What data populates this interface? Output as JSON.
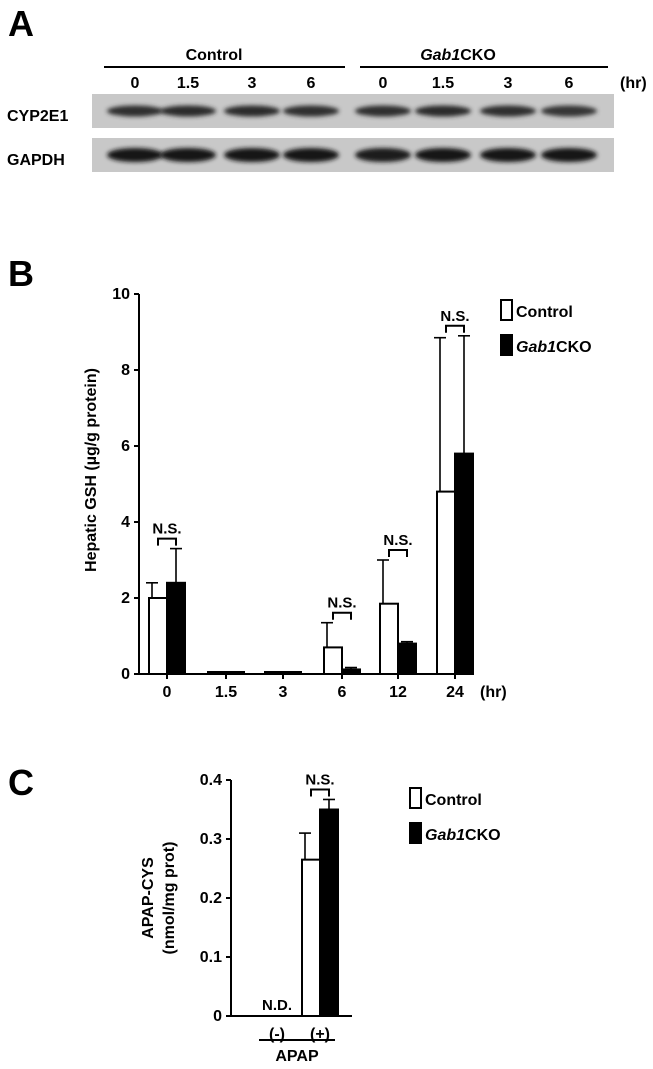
{
  "panel_a": {
    "letter": "A",
    "group_control": "Control",
    "group_cko_italic": "Gab1",
    "group_cko_rest": "CKO",
    "lanes": [
      "0",
      "1.5",
      "3",
      "6",
      "0",
      "1.5",
      "3",
      "6"
    ],
    "unit": "(hr)",
    "rows": [
      {
        "label": "CYP2E1",
        "intensities": [
          0.78,
          0.82,
          0.8,
          0.78,
          0.78,
          0.8,
          0.78,
          0.72
        ]
      },
      {
        "label": "GAPDH",
        "intensities": [
          0.98,
          0.98,
          0.98,
          0.98,
          0.95,
          0.98,
          0.98,
          0.96
        ]
      }
    ]
  },
  "panel_b_letter": "B",
  "panel_c_letter": "C",
  "chart_data": [
    {
      "type": "bar",
      "title": "",
      "ylabel": "Hepatic GSH (µg/g protein)",
      "categories": [
        "0",
        "1.5",
        "3",
        "6",
        "12",
        "24"
      ],
      "x_unit": "(hr)",
      "ylim": [
        0,
        10
      ],
      "yticks": [
        "0",
        "2",
        "4",
        "6",
        "8",
        "10"
      ],
      "series": [
        {
          "name": "Control",
          "values": [
            2.0,
            0.05,
            0.05,
            0.7,
            1.85,
            4.8
          ],
          "errors": [
            0.4,
            0,
            0,
            0.65,
            1.15,
            4.05
          ],
          "fill": "#ffffff"
        },
        {
          "name": "Gab1CKO",
          "values": [
            2.4,
            0.05,
            0.05,
            0.12,
            0.8,
            5.8
          ],
          "errors": [
            0.9,
            0,
            0,
            0.05,
            0.05,
            3.1
          ],
          "fill": "#000000"
        }
      ],
      "annotations": [
        {
          "category": "0",
          "text": "N.S."
        },
        {
          "category": "6",
          "text": "N.S."
        },
        {
          "category": "12",
          "text": "N.S."
        },
        {
          "category": "24",
          "text": "N.S."
        }
      ],
      "legend": {
        "position": "top-right",
        "items": [
          {
            "italic": "",
            "rest": "Control"
          },
          {
            "italic": "Gab1",
            "rest": "CKO"
          }
        ]
      }
    },
    {
      "type": "bar",
      "title": "",
      "ylabel_line1": "APAP-CYS",
      "ylabel_line2": "(nmol/mg prot)",
      "categories": [
        "(-)",
        "(+)"
      ],
      "group_label": "APAP",
      "ylim": [
        0,
        0.4
      ],
      "yticks": [
        "0",
        "0.1",
        "0.2",
        "0.3",
        "0.4"
      ],
      "series": [
        {
          "name": "Control",
          "values": [
            0,
            0.265
          ],
          "errors": [
            0,
            0.045
          ],
          "fill": "#ffffff"
        },
        {
          "name": "Gab1CKO",
          "values": [
            0,
            0.35
          ],
          "errors": [
            0,
            0.017
          ],
          "fill": "#000000"
        }
      ],
      "annotations": [
        {
          "category": "(-)",
          "text": "N.D."
        },
        {
          "category": "(+)",
          "text": "N.S."
        }
      ],
      "legend": {
        "position": "top-right",
        "items": [
          {
            "italic": "",
            "rest": "Control"
          },
          {
            "italic": "Gab1",
            "rest": "CKO"
          }
        ]
      }
    }
  ]
}
